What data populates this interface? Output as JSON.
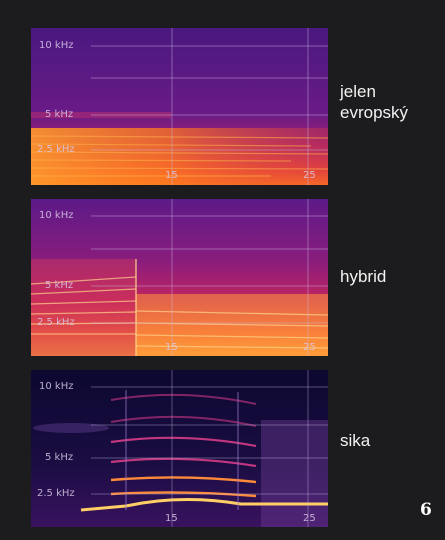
{
  "panels": [
    {
      "label_line1": "jelen",
      "label_line2": "evropský",
      "y_ticks": [
        "10 kHz",
        "5 kHz",
        "2.5 kHz"
      ],
      "x_ticks": [
        "15",
        "25"
      ],
      "colors": {
        "base": "#5a1a8a",
        "hot": "#ff8c1a",
        "mid": "#c21f6b"
      }
    },
    {
      "label": "hybrid",
      "y_ticks": [
        "10 kHz",
        "5 kHz",
        "2.5 kHz"
      ],
      "x_ticks": [
        "15",
        "25"
      ],
      "colors": {
        "base": "#6b1a86",
        "hot": "#ffb84d",
        "mid": "#d02a62"
      }
    },
    {
      "label": "sika",
      "y_ticks": [
        "10 kHz",
        "5 kHz",
        "2.5 kHz"
      ],
      "x_ticks": [
        "15",
        "25"
      ],
      "colors": {
        "base": "#120a3a",
        "hot": "#ffcf66",
        "mid": "#b3207a"
      }
    }
  ],
  "page_number": "6"
}
